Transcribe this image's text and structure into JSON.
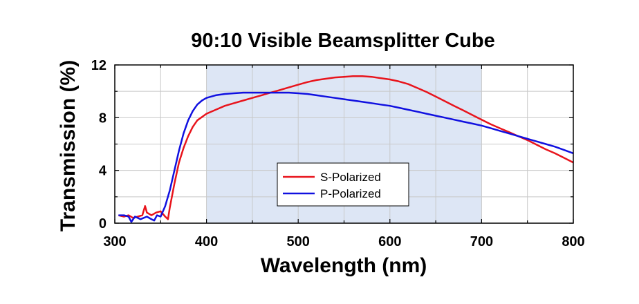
{
  "chart_data": {
    "type": "line",
    "title": "90:10 Visible Beamsplitter Cube",
    "xlabel": "Wavelength (nm)",
    "ylabel": "Transmission (%)",
    "xlim": [
      300,
      800
    ],
    "ylim": [
      0,
      12
    ],
    "xticks": [
      300,
      400,
      500,
      600,
      700,
      800
    ],
    "yticks": [
      0,
      4,
      8,
      12
    ],
    "grid": true,
    "highlight_band": [
      400,
      700
    ],
    "legend_position": "center",
    "colors": {
      "S-Polarized": "#e8141c",
      "P-Polarized": "#1010e0",
      "band": "#dde6f5",
      "grid": "#c8c8c8"
    },
    "series": [
      {
        "name": "S-Polarized",
        "color": "#e8141c",
        "points": [
          [
            304,
            0.6
          ],
          [
            310,
            0.5
          ],
          [
            315,
            0.6
          ],
          [
            320,
            0.4
          ],
          [
            325,
            0.5
          ],
          [
            330,
            0.6
          ],
          [
            333,
            1.3
          ],
          [
            335,
            0.8
          ],
          [
            340,
            0.6
          ],
          [
            345,
            0.8
          ],
          [
            350,
            0.9
          ],
          [
            355,
            0.5
          ],
          [
            358,
            0.3
          ],
          [
            360,
            1.2
          ],
          [
            365,
            3.0
          ],
          [
            370,
            4.6
          ],
          [
            375,
            5.7
          ],
          [
            380,
            6.6
          ],
          [
            385,
            7.3
          ],
          [
            390,
            7.8
          ],
          [
            400,
            8.3
          ],
          [
            410,
            8.6
          ],
          [
            420,
            8.9
          ],
          [
            430,
            9.1
          ],
          [
            440,
            9.3
          ],
          [
            450,
            9.5
          ],
          [
            460,
            9.7
          ],
          [
            470,
            9.9
          ],
          [
            480,
            10.1
          ],
          [
            490,
            10.3
          ],
          [
            500,
            10.5
          ],
          [
            510,
            10.7
          ],
          [
            520,
            10.85
          ],
          [
            530,
            10.95
          ],
          [
            540,
            11.05
          ],
          [
            550,
            11.1
          ],
          [
            560,
            11.15
          ],
          [
            570,
            11.15
          ],
          [
            580,
            11.1
          ],
          [
            590,
            11.0
          ],
          [
            600,
            10.9
          ],
          [
            610,
            10.75
          ],
          [
            620,
            10.55
          ],
          [
            630,
            10.25
          ],
          [
            640,
            9.95
          ],
          [
            650,
            9.6
          ],
          [
            660,
            9.25
          ],
          [
            670,
            8.9
          ],
          [
            680,
            8.55
          ],
          [
            690,
            8.2
          ],
          [
            700,
            7.85
          ],
          [
            710,
            7.5
          ],
          [
            720,
            7.2
          ],
          [
            730,
            6.9
          ],
          [
            740,
            6.6
          ],
          [
            750,
            6.3
          ],
          [
            760,
            5.95
          ],
          [
            770,
            5.6
          ],
          [
            780,
            5.3
          ],
          [
            790,
            4.95
          ],
          [
            800,
            4.6
          ]
        ]
      },
      {
        "name": "P-Polarized",
        "color": "#1010e0",
        "points": [
          [
            304,
            0.6
          ],
          [
            310,
            0.6
          ],
          [
            315,
            0.5
          ],
          [
            318,
            0.1
          ],
          [
            322,
            0.5
          ],
          [
            328,
            0.3
          ],
          [
            335,
            0.5
          ],
          [
            340,
            0.3
          ],
          [
            343,
            0.2
          ],
          [
            346,
            0.6
          ],
          [
            350,
            0.5
          ],
          [
            355,
            1.3
          ],
          [
            360,
            2.5
          ],
          [
            365,
            4.0
          ],
          [
            370,
            5.5
          ],
          [
            375,
            6.8
          ],
          [
            380,
            7.8
          ],
          [
            385,
            8.5
          ],
          [
            390,
            9.0
          ],
          [
            395,
            9.3
          ],
          [
            400,
            9.5
          ],
          [
            410,
            9.7
          ],
          [
            420,
            9.8
          ],
          [
            430,
            9.85
          ],
          [
            440,
            9.9
          ],
          [
            450,
            9.9
          ],
          [
            460,
            9.9
          ],
          [
            470,
            9.9
          ],
          [
            480,
            9.9
          ],
          [
            490,
            9.9
          ],
          [
            500,
            9.85
          ],
          [
            510,
            9.8
          ],
          [
            520,
            9.7
          ],
          [
            530,
            9.6
          ],
          [
            540,
            9.5
          ],
          [
            550,
            9.4
          ],
          [
            560,
            9.3
          ],
          [
            570,
            9.2
          ],
          [
            580,
            9.1
          ],
          [
            590,
            9.0
          ],
          [
            600,
            8.9
          ],
          [
            610,
            8.75
          ],
          [
            620,
            8.6
          ],
          [
            630,
            8.45
          ],
          [
            640,
            8.3
          ],
          [
            650,
            8.15
          ],
          [
            660,
            8.0
          ],
          [
            670,
            7.85
          ],
          [
            680,
            7.7
          ],
          [
            690,
            7.55
          ],
          [
            700,
            7.4
          ],
          [
            710,
            7.2
          ],
          [
            720,
            7.0
          ],
          [
            730,
            6.8
          ],
          [
            740,
            6.6
          ],
          [
            750,
            6.4
          ],
          [
            760,
            6.2
          ],
          [
            770,
            6.0
          ],
          [
            780,
            5.8
          ],
          [
            790,
            5.55
          ],
          [
            800,
            5.3
          ]
        ]
      }
    ]
  }
}
